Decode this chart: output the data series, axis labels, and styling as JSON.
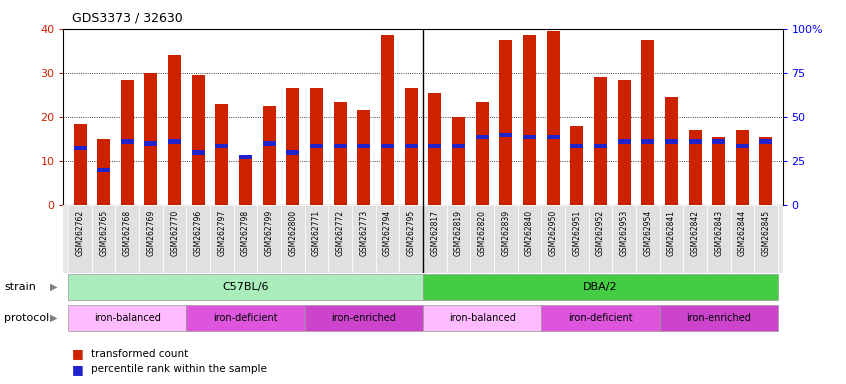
{
  "title": "GDS3373 / 32630",
  "samples": [
    "GSM262762",
    "GSM262765",
    "GSM262768",
    "GSM262769",
    "GSM262770",
    "GSM262796",
    "GSM262797",
    "GSM262798",
    "GSM262799",
    "GSM262800",
    "GSM262771",
    "GSM262772",
    "GSM262773",
    "GSM262794",
    "GSM262795",
    "GSM262817",
    "GSM262819",
    "GSM262820",
    "GSM262839",
    "GSM262840",
    "GSM262950",
    "GSM262951",
    "GSM262952",
    "GSM262953",
    "GSM262954",
    "GSM262841",
    "GSM262842",
    "GSM262843",
    "GSM262844",
    "GSM262845"
  ],
  "red_values": [
    18.5,
    15.0,
    28.5,
    30.0,
    34.0,
    29.5,
    23.0,
    10.5,
    22.5,
    26.5,
    26.5,
    23.5,
    21.5,
    38.5,
    26.5,
    25.5,
    20.0,
    23.5,
    37.5,
    38.5,
    39.5,
    18.0,
    29.0,
    28.5,
    37.5,
    24.5,
    17.0,
    15.5,
    17.0,
    15.5
  ],
  "blue_values": [
    13.0,
    8.0,
    14.5,
    14.0,
    14.5,
    12.0,
    13.5,
    11.0,
    14.0,
    12.0,
    13.5,
    13.5,
    13.5,
    13.5,
    13.5,
    13.5,
    13.5,
    15.5,
    16.0,
    15.5,
    15.5,
    13.5,
    13.5,
    14.5,
    14.5,
    14.5,
    14.5,
    14.5,
    13.5,
    14.5
  ],
  "strain_groups": [
    {
      "label": "C57BL/6",
      "start": 0,
      "end": 14,
      "color": "#aaeebb"
    },
    {
      "label": "DBA/2",
      "start": 15,
      "end": 29,
      "color": "#44cc44"
    }
  ],
  "protocol_groups": [
    {
      "label": "iron-balanced",
      "start": 0,
      "end": 4,
      "color": "#ffbbff"
    },
    {
      "label": "iron-deficient",
      "start": 5,
      "end": 9,
      "color": "#dd55dd"
    },
    {
      "label": "iron-enriched",
      "start": 10,
      "end": 14,
      "color": "#cc44cc"
    },
    {
      "label": "iron-balanced",
      "start": 15,
      "end": 19,
      "color": "#ffbbff"
    },
    {
      "label": "iron-deficient",
      "start": 20,
      "end": 24,
      "color": "#dd55dd"
    },
    {
      "label": "iron-enriched",
      "start": 25,
      "end": 29,
      "color": "#cc44cc"
    }
  ],
  "ylim_left": [
    0,
    40
  ],
  "ylim_right": [
    0,
    100
  ],
  "yticks_left": [
    0,
    10,
    20,
    30,
    40
  ],
  "yticks_right": [
    0,
    25,
    50,
    75,
    100
  ],
  "ytick_labels_right": [
    "0",
    "25",
    "50",
    "75",
    "100%"
  ],
  "red_color": "#cc2200",
  "blue_color": "#2222cc",
  "bar_width": 0.55,
  "label_red": "transformed count",
  "label_blue": "percentile rank within the sample",
  "strain_label": "strain",
  "protocol_label": "protocol"
}
